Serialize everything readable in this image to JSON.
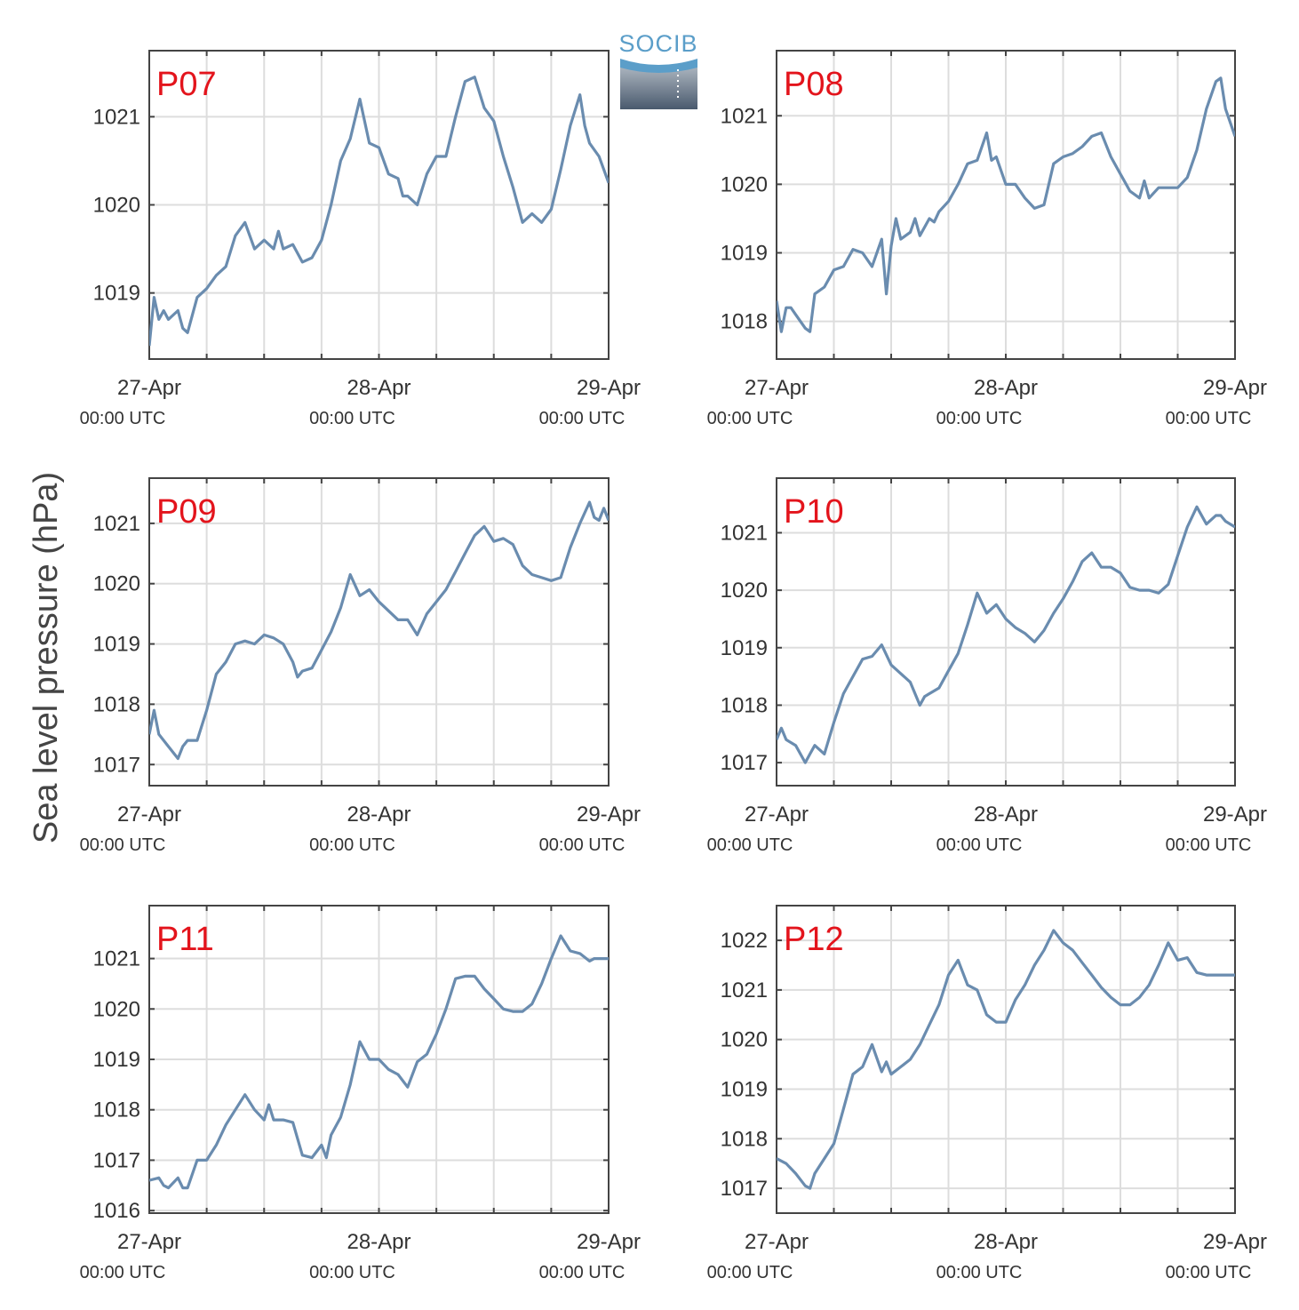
{
  "figure": {
    "ylabel": "Sea level pressure (hPa)",
    "logo": {
      "name": "socib-logo",
      "text": "SOCIB"
    },
    "colors": {
      "series": "#6a8caf",
      "title": "#e3141c",
      "grid": "#dddddd",
      "axes": "#444444",
      "text": "#333333"
    }
  },
  "chart_data": [
    {
      "type": "line",
      "title": "P07",
      "xlim": [
        0,
        48
      ],
      "ylim": [
        1018.25,
        1021.75
      ],
      "yticks": [
        1019,
        1020,
        1021
      ],
      "xticks": [
        {
          "day": "27-Apr",
          "time": "00:00 UTC"
        },
        {
          "day": "28-Apr",
          "time": "00:00 UTC"
        },
        {
          "day": "29-Apr",
          "time": "00:00 UTC"
        }
      ],
      "series": [
        {
          "x": [
            0,
            0.5,
            1,
            1.5,
            2,
            3,
            3.5,
            4,
            5,
            6,
            7,
            8,
            9,
            10,
            11,
            12,
            13,
            13.5,
            14,
            15,
            16,
            17,
            18,
            19,
            20,
            21,
            22,
            23,
            24,
            25,
            26,
            26.5,
            27,
            28,
            29,
            30,
            31,
            32,
            33,
            34,
            35,
            36,
            37,
            38,
            39,
            40,
            41,
            42,
            43,
            44,
            45,
            45.5,
            46,
            47,
            48
          ],
          "y": [
            1018.4,
            1018.95,
            1018.7,
            1018.8,
            1018.7,
            1018.8,
            1018.6,
            1018.55,
            1018.95,
            1019.05,
            1019.2,
            1019.3,
            1019.65,
            1019.8,
            1019.5,
            1019.6,
            1019.5,
            1019.7,
            1019.5,
            1019.55,
            1019.35,
            1019.4,
            1019.6,
            1020.0,
            1020.5,
            1020.75,
            1021.2,
            1020.7,
            1020.65,
            1020.35,
            1020.3,
            1020.1,
            1020.1,
            1020.0,
            1020.35,
            1020.55,
            1020.55,
            1021.0,
            1021.4,
            1021.45,
            1021.1,
            1020.95,
            1020.55,
            1020.2,
            1019.8,
            1019.9,
            1019.8,
            1019.95,
            1020.4,
            1020.9,
            1021.25,
            1020.9,
            1020.7,
            1020.55,
            1020.25
          ]
        }
      ]
    },
    {
      "type": "line",
      "title": "P08",
      "xlim": [
        0,
        48
      ],
      "ylim": [
        1017.45,
        1021.95
      ],
      "yticks": [
        1018,
        1019,
        1020,
        1021
      ],
      "xticks": [
        {
          "day": "27-Apr",
          "time": "00:00 UTC"
        },
        {
          "day": "28-Apr",
          "time": "00:00 UTC"
        },
        {
          "day": "29-Apr",
          "time": "00:00 UTC"
        }
      ],
      "series": [
        {
          "x": [
            0,
            0.5,
            1,
            1.5,
            2,
            3,
            3.5,
            4,
            5,
            6,
            7,
            8,
            9,
            10,
            11,
            11.5,
            12,
            12.5,
            13,
            14,
            14.5,
            15,
            16,
            16.5,
            17,
            18,
            19,
            20,
            21,
            22,
            22.5,
            23,
            24,
            25,
            26,
            27,
            28,
            29,
            30,
            31,
            32,
            33,
            34,
            35,
            36,
            37,
            38,
            38.5,
            39,
            40,
            41,
            42,
            43,
            44,
            45,
            46,
            46.5,
            47,
            48
          ],
          "y": [
            1018.3,
            1017.85,
            1018.2,
            1018.2,
            1018.1,
            1017.9,
            1017.85,
            1018.4,
            1018.5,
            1018.75,
            1018.8,
            1019.05,
            1019.0,
            1018.8,
            1019.2,
            1018.4,
            1019.1,
            1019.5,
            1019.2,
            1019.3,
            1019.5,
            1019.25,
            1019.5,
            1019.45,
            1019.6,
            1019.75,
            1020.0,
            1020.3,
            1020.35,
            1020.75,
            1020.35,
            1020.4,
            1020.0,
            1020.0,
            1019.8,
            1019.65,
            1019.7,
            1020.3,
            1020.4,
            1020.45,
            1020.55,
            1020.7,
            1020.75,
            1020.4,
            1020.15,
            1019.9,
            1019.8,
            1020.05,
            1019.8,
            1019.95,
            1019.95,
            1019.95,
            1020.1,
            1020.5,
            1021.1,
            1021.5,
            1021.55,
            1021.1,
            1020.7
          ]
        }
      ]
    },
    {
      "type": "line",
      "title": "P09",
      "xlim": [
        0,
        48
      ],
      "ylim": [
        1016.65,
        1021.75
      ],
      "yticks": [
        1017,
        1018,
        1019,
        1020,
        1021
      ],
      "xticks": [
        {
          "day": "27-Apr",
          "time": "00:00 UTC"
        },
        {
          "day": "28-Apr",
          "time": "00:00 UTC"
        },
        {
          "day": "29-Apr",
          "time": "00:00 UTC"
        }
      ],
      "series": [
        {
          "x": [
            0,
            0.5,
            1,
            1.5,
            2,
            3,
            3.5,
            4,
            5,
            6,
            7,
            8,
            9,
            10,
            11,
            12,
            13,
            14,
            15,
            15.5,
            16,
            17,
            18,
            19,
            20,
            21,
            22,
            23,
            24,
            25,
            26,
            27,
            28,
            29,
            30,
            31,
            32,
            33,
            34,
            35,
            36,
            37,
            38,
            39,
            40,
            41,
            42,
            43,
            44,
            45,
            46,
            46.5,
            47,
            47.5,
            48
          ],
          "y": [
            1017.5,
            1017.9,
            1017.5,
            1017.4,
            1017.3,
            1017.1,
            1017.3,
            1017.4,
            1017.4,
            1017.9,
            1018.5,
            1018.7,
            1019.0,
            1019.05,
            1019.0,
            1019.15,
            1019.1,
            1019.0,
            1018.7,
            1018.45,
            1018.55,
            1018.6,
            1018.9,
            1019.2,
            1019.6,
            1020.15,
            1019.8,
            1019.9,
            1019.7,
            1019.55,
            1019.4,
            1019.4,
            1019.15,
            1019.5,
            1019.7,
            1019.9,
            1020.2,
            1020.5,
            1020.8,
            1020.95,
            1020.7,
            1020.75,
            1020.65,
            1020.3,
            1020.15,
            1020.1,
            1020.05,
            1020.1,
            1020.6,
            1021.0,
            1021.35,
            1021.1,
            1021.05,
            1021.25,
            1021.05
          ]
        }
      ]
    },
    {
      "type": "line",
      "title": "P10",
      "xlim": [
        0,
        48
      ],
      "ylim": [
        1016.6,
        1021.95
      ],
      "yticks": [
        1017,
        1018,
        1019,
        1020,
        1021
      ],
      "xticks": [
        {
          "day": "27-Apr",
          "time": "00:00 UTC"
        },
        {
          "day": "28-Apr",
          "time": "00:00 UTC"
        },
        {
          "day": "29-Apr",
          "time": "00:00 UTC"
        }
      ],
      "series": [
        {
          "x": [
            0,
            0.5,
            1,
            1.5,
            2,
            3,
            3.5,
            4,
            5,
            6,
            7,
            8,
            9,
            10,
            11,
            12,
            13,
            14,
            15,
            15.5,
            16,
            17,
            18,
            19,
            20,
            21,
            22,
            23,
            24,
            25,
            26,
            27,
            28,
            29,
            30,
            31,
            32,
            33,
            34,
            35,
            36,
            37,
            38,
            39,
            40,
            41,
            42,
            43,
            44,
            45,
            46,
            46.5,
            47,
            47.5,
            48
          ],
          "y": [
            1017.4,
            1017.6,
            1017.4,
            1017.35,
            1017.3,
            1017.0,
            1017.15,
            1017.3,
            1017.15,
            1017.7,
            1018.2,
            1018.5,
            1018.8,
            1018.85,
            1019.05,
            1018.7,
            1018.55,
            1018.4,
            1018.0,
            1018.15,
            1018.2,
            1018.3,
            1018.6,
            1018.9,
            1019.4,
            1019.95,
            1019.6,
            1019.75,
            1019.5,
            1019.35,
            1019.25,
            1019.1,
            1019.3,
            1019.6,
            1019.85,
            1020.15,
            1020.5,
            1020.65,
            1020.4,
            1020.4,
            1020.3,
            1020.05,
            1020.0,
            1020.0,
            1019.95,
            1020.1,
            1020.6,
            1021.1,
            1021.45,
            1021.15,
            1021.3,
            1021.3,
            1021.2,
            1021.15,
            1021.1
          ]
        }
      ]
    },
    {
      "type": "line",
      "title": "P11",
      "xlim": [
        0,
        48
      ],
      "ylim": [
        1015.95,
        1022.05
      ],
      "yticks": [
        1016,
        1017,
        1018,
        1019,
        1020,
        1021
      ],
      "xticks": [
        {
          "day": "27-Apr",
          "time": "00:00 UTC"
        },
        {
          "day": "28-Apr",
          "time": "00:00 UTC"
        },
        {
          "day": "29-Apr",
          "time": "00:00 UTC"
        }
      ],
      "series": [
        {
          "x": [
            0,
            1,
            1.5,
            2,
            3,
            3.5,
            4,
            5,
            6,
            7,
            8,
            9,
            10,
            11,
            12,
            12.5,
            13,
            14,
            15,
            16,
            17,
            18,
            18.5,
            19,
            20,
            21,
            22,
            23,
            24,
            25,
            26,
            27,
            28,
            29,
            30,
            31,
            32,
            33,
            34,
            35,
            36,
            37,
            38,
            39,
            40,
            41,
            42,
            43,
            44,
            45,
            46,
            46.5,
            47,
            48
          ],
          "y": [
            1016.6,
            1016.65,
            1016.5,
            1016.45,
            1016.65,
            1016.45,
            1016.45,
            1017.0,
            1017.0,
            1017.3,
            1017.7,
            1018.0,
            1018.3,
            1018.0,
            1017.8,
            1018.1,
            1017.8,
            1017.8,
            1017.75,
            1017.1,
            1017.05,
            1017.3,
            1017.05,
            1017.5,
            1017.85,
            1018.5,
            1019.35,
            1019.0,
            1019.0,
            1018.8,
            1018.7,
            1018.45,
            1018.95,
            1019.1,
            1019.5,
            1020.0,
            1020.6,
            1020.65,
            1020.65,
            1020.4,
            1020.2,
            1020.0,
            1019.95,
            1019.95,
            1020.1,
            1020.5,
            1021.0,
            1021.45,
            1021.15,
            1021.1,
            1020.95,
            1021.0,
            1021.0,
            1021.0
          ]
        }
      ]
    },
    {
      "type": "line",
      "title": "P12",
      "xlim": [
        0,
        48
      ],
      "ylim": [
        1016.5,
        1022.7
      ],
      "yticks": [
        1017,
        1018,
        1019,
        1020,
        1021,
        1022
      ],
      "xticks": [
        {
          "day": "27-Apr",
          "time": "00:00 UTC"
        },
        {
          "day": "28-Apr",
          "time": "00:00 UTC"
        },
        {
          "day": "29-Apr",
          "time": "00:00 UTC"
        }
      ],
      "series": [
        {
          "x": [
            0,
            1,
            2,
            3,
            3.5,
            4,
            5,
            6,
            7,
            8,
            9,
            10,
            11,
            11.5,
            12,
            13,
            14,
            15,
            16,
            17,
            18,
            19,
            20,
            21,
            22,
            23,
            24,
            25,
            26,
            27,
            28,
            29,
            30,
            31,
            32,
            33,
            34,
            35,
            36,
            37,
            38,
            39,
            40,
            41,
            42,
            43,
            44,
            45,
            46,
            46.5,
            47,
            48
          ],
          "y": [
            1017.6,
            1017.5,
            1017.3,
            1017.05,
            1017.0,
            1017.3,
            1017.6,
            1017.9,
            1018.6,
            1019.3,
            1019.45,
            1019.9,
            1019.35,
            1019.55,
            1019.3,
            1019.45,
            1019.6,
            1019.9,
            1020.3,
            1020.7,
            1021.3,
            1021.6,
            1021.1,
            1021.0,
            1020.5,
            1020.35,
            1020.35,
            1020.8,
            1021.1,
            1021.5,
            1021.8,
            1022.2,
            1021.95,
            1021.8,
            1021.55,
            1021.3,
            1021.05,
            1020.85,
            1020.7,
            1020.7,
            1020.85,
            1021.1,
            1021.5,
            1021.95,
            1021.6,
            1021.65,
            1021.35,
            1021.3,
            1021.3,
            1021.3,
            1021.3,
            1021.3
          ]
        }
      ]
    }
  ]
}
